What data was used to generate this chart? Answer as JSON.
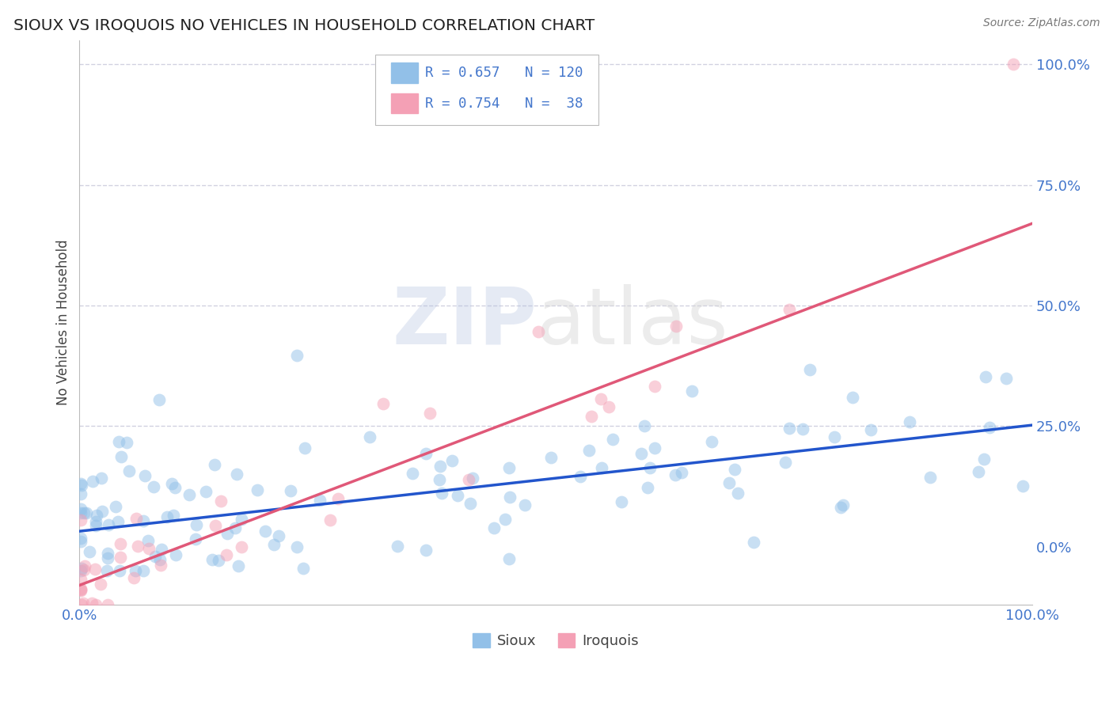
{
  "title": "SIOUX VS IROQUOIS NO VEHICLES IN HOUSEHOLD CORRELATION CHART",
  "source": "Source: ZipAtlas.com",
  "ylabel": "No Vehicles in Household",
  "sioux_R": 0.657,
  "sioux_N": 120,
  "iroquois_R": 0.754,
  "iroquois_N": 38,
  "sioux_color": "#92c0e8",
  "iroquois_color": "#f4a0b5",
  "sioux_line_color": "#2255cc",
  "iroquois_line_color": "#e05878",
  "axis_label_color": "#4477cc",
  "title_color": "#222222",
  "background_color": "#ffffff",
  "grid_color": "#ccccdd",
  "sioux_line_intercept": 0.032,
  "sioux_line_slope": 0.22,
  "iroquois_line_intercept": -0.08,
  "iroquois_line_slope": 0.75
}
